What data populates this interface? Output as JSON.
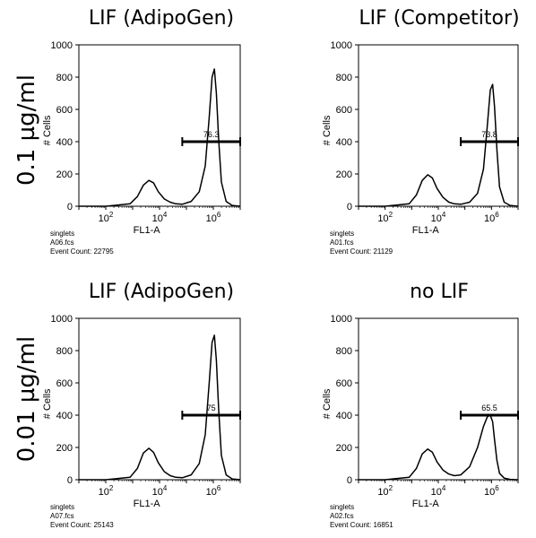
{
  "row_labels": [
    "0.1 µg/ml",
    "0.01 µg/ml"
  ],
  "chart_data": [
    {
      "type": "area",
      "title": "LIF (AdipoGen)",
      "xlabel": "FL1-A",
      "ylabel": "# Cells",
      "x_scale": "log",
      "xlim": [
        10,
        10000000
      ],
      "ylim": [
        0,
        1000
      ],
      "yticks": [
        "0",
        "200",
        "400",
        "600",
        "800",
        "1000"
      ],
      "xticks": [
        "10^2",
        "10^4",
        "10^6"
      ],
      "series": [
        {
          "x": [
            10,
            100,
            800,
            1500,
            2500,
            4000,
            6000,
            9000,
            15000,
            25000,
            40000,
            70000,
            150000,
            300000,
            500000,
            700000,
            900000,
            1100000,
            1300000,
            1600000,
            2000000,
            3000000,
            5000000,
            10000000
          ],
          "y": [
            0,
            0,
            15,
            60,
            130,
            160,
            145,
            90,
            45,
            25,
            15,
            12,
            30,
            90,
            250,
            550,
            800,
            850,
            700,
            400,
            150,
            30,
            5,
            0
          ]
        }
      ],
      "gate": {
        "range": [
          70000,
          10000000
        ],
        "y": 400,
        "label": "76.3"
      },
      "footer": [
        "singlets",
        "A06.fcs",
        "Event Count: 22795"
      ]
    },
    {
      "type": "area",
      "title": "LIF (Competitor)",
      "xlabel": "FL1-A",
      "ylabel": "# Cells",
      "x_scale": "log",
      "xlim": [
        10,
        10000000
      ],
      "ylim": [
        0,
        1000
      ],
      "yticks": [
        "0",
        "200",
        "400",
        "600",
        "800",
        "1000"
      ],
      "xticks": [
        "10^2",
        "10^4",
        "10^6"
      ],
      "series": [
        {
          "x": [
            10,
            100,
            800,
            1500,
            2500,
            4000,
            6000,
            9000,
            15000,
            25000,
            40000,
            70000,
            150000,
            300000,
            500000,
            700000,
            900000,
            1100000,
            1300000,
            1600000,
            2000000,
            3000000,
            5000000,
            10000000
          ],
          "y": [
            0,
            0,
            15,
            70,
            160,
            195,
            175,
            110,
            55,
            25,
            15,
            12,
            25,
            80,
            230,
            500,
            720,
            755,
            620,
            350,
            120,
            25,
            5,
            0
          ]
        }
      ],
      "gate": {
        "range": [
          70000,
          10000000
        ],
        "y": 400,
        "label": "73.8"
      },
      "footer": [
        "singlets",
        "A01.fcs",
        "Event Count: 21129"
      ]
    },
    {
      "type": "area",
      "title": "LIF (AdipoGen)",
      "xlabel": "FL1-A",
      "ylabel": "# Cells",
      "x_scale": "log",
      "xlim": [
        10,
        10000000
      ],
      "ylim": [
        0,
        1000
      ],
      "yticks": [
        "0",
        "200",
        "400",
        "600",
        "800",
        "1000"
      ],
      "xticks": [
        "10^2",
        "10^4",
        "10^6"
      ],
      "series": [
        {
          "x": [
            10,
            100,
            800,
            1500,
            2500,
            4000,
            6000,
            9000,
            15000,
            25000,
            40000,
            70000,
            150000,
            300000,
            500000,
            700000,
            900000,
            1100000,
            1300000,
            1600000,
            2000000,
            3000000,
            5000000,
            10000000
          ],
          "y": [
            0,
            0,
            15,
            70,
            165,
            195,
            170,
            105,
            50,
            25,
            15,
            12,
            30,
            100,
            280,
            600,
            850,
            895,
            740,
            420,
            150,
            30,
            5,
            0
          ]
        }
      ],
      "gate": {
        "range": [
          70000,
          10000000
        ],
        "y": 400,
        "label": "75"
      },
      "footer": [
        "singlets",
        "A07.fcs",
        "Event Count: 25143"
      ]
    },
    {
      "type": "area",
      "title": "no LIF",
      "xlabel": "FL1-A",
      "ylabel": "# Cells",
      "x_scale": "log",
      "xlim": [
        10,
        10000000
      ],
      "ylim": [
        0,
        1000
      ],
      "yticks": [
        "0",
        "200",
        "400",
        "600",
        "800",
        "1000"
      ],
      "xticks": [
        "10^2",
        "10^4",
        "10^6"
      ],
      "series": [
        {
          "x": [
            10,
            100,
            800,
            1500,
            2500,
            4000,
            6000,
            9000,
            15000,
            25000,
            40000,
            70000,
            150000,
            300000,
            500000,
            700000,
            900000,
            1100000,
            1300000,
            1600000,
            2000000,
            3000000,
            5000000,
            10000000
          ],
          "y": [
            0,
            0,
            15,
            70,
            160,
            190,
            170,
            110,
            60,
            35,
            25,
            30,
            80,
            200,
            330,
            390,
            400,
            360,
            250,
            120,
            40,
            10,
            2,
            0
          ]
        }
      ],
      "gate": {
        "range": [
          70000,
          10000000
        ],
        "y": 400,
        "label": "65.5"
      },
      "footer": [
        "singlets",
        "A02.fcs",
        "Event Count: 16851"
      ]
    }
  ]
}
